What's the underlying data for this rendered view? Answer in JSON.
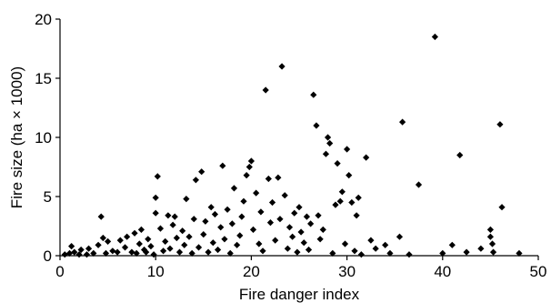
{
  "chart_data": {
    "type": "scatter",
    "title": "",
    "xlabel": "Fire danger index",
    "ylabel": "Fire size (ha × 1000)",
    "xlim": [
      0,
      50
    ],
    "ylim": [
      0,
      20
    ],
    "xticks": [
      0,
      10,
      20,
      30,
      40,
      50
    ],
    "yticks": [
      0,
      5,
      10,
      15,
      20
    ],
    "xtick_labels": [
      "0",
      "10",
      "20",
      "30",
      "40",
      "50"
    ],
    "ytick_labels": [
      "0",
      "5",
      "10",
      "15",
      "20"
    ],
    "grid": false,
    "marker": "diamond",
    "marker_color": "#000000",
    "points": [
      [
        0.5,
        0.1
      ],
      [
        1.0,
        0.2
      ],
      [
        1.2,
        0.8
      ],
      [
        1.5,
        0.3
      ],
      [
        2.0,
        0.1
      ],
      [
        2.2,
        0.5
      ],
      [
        2.8,
        0.1
      ],
      [
        3.0,
        0.6
      ],
      [
        3.5,
        0.2
      ],
      [
        4.0,
        0.9
      ],
      [
        4.3,
        3.3
      ],
      [
        4.5,
        1.5
      ],
      [
        4.8,
        0.2
      ],
      [
        5.0,
        1.2
      ],
      [
        5.5,
        0.4
      ],
      [
        6.0,
        0.3
      ],
      [
        6.3,
        1.3
      ],
      [
        6.8,
        0.7
      ],
      [
        7.0,
        1.6
      ],
      [
        7.5,
        0.3
      ],
      [
        7.8,
        1.9
      ],
      [
        8.0,
        0.2
      ],
      [
        8.3,
        1.0
      ],
      [
        8.5,
        2.2
      ],
      [
        8.8,
        0.5
      ],
      [
        9.0,
        0.3
      ],
      [
        9.2,
        1.4
      ],
      [
        9.5,
        0.8
      ],
      [
        9.8,
        0.1
      ],
      [
        10.0,
        3.6
      ],
      [
        10.0,
        4.9
      ],
      [
        10.2,
        6.7
      ],
      [
        10.5,
        2.3
      ],
      [
        10.8,
        0.4
      ],
      [
        11.0,
        1.2
      ],
      [
        11.3,
        3.4
      ],
      [
        11.5,
        0.6
      ],
      [
        11.8,
        2.6
      ],
      [
        12.0,
        3.3
      ],
      [
        12.2,
        1.5
      ],
      [
        12.5,
        0.3
      ],
      [
        12.8,
        2.1
      ],
      [
        13.0,
        0.9
      ],
      [
        13.2,
        4.8
      ],
      [
        13.5,
        1.6
      ],
      [
        13.8,
        0.2
      ],
      [
        14.0,
        3.1
      ],
      [
        14.2,
        6.4
      ],
      [
        14.5,
        0.7
      ],
      [
        14.8,
        7.1
      ],
      [
        15.0,
        1.8
      ],
      [
        15.2,
        2.9
      ],
      [
        15.5,
        0.3
      ],
      [
        15.8,
        4.1
      ],
      [
        16.0,
        1.1
      ],
      [
        16.2,
        3.5
      ],
      [
        16.5,
        0.5
      ],
      [
        16.8,
        2.4
      ],
      [
        17.0,
        7.6
      ],
      [
        17.2,
        1.4
      ],
      [
        17.5,
        3.9
      ],
      [
        17.8,
        0.2
      ],
      [
        18.0,
        2.7
      ],
      [
        18.2,
        5.7
      ],
      [
        18.5,
        0.9
      ],
      [
        18.8,
        1.7
      ],
      [
        19.0,
        3.3
      ],
      [
        19.2,
        4.6
      ],
      [
        19.5,
        6.8
      ],
      [
        19.8,
        7.5
      ],
      [
        20.0,
        8.0
      ],
      [
        20.2,
        2.2
      ],
      [
        20.5,
        5.3
      ],
      [
        20.8,
        1.0
      ],
      [
        21.0,
        3.7
      ],
      [
        21.2,
        0.4
      ],
      [
        21.5,
        14.0
      ],
      [
        21.8,
        6.5
      ],
      [
        22.0,
        2.8
      ],
      [
        22.2,
        4.5
      ],
      [
        22.5,
        1.3
      ],
      [
        22.8,
        6.6
      ],
      [
        23.0,
        3.1
      ],
      [
        23.2,
        16.0
      ],
      [
        23.5,
        5.1
      ],
      [
        23.8,
        0.6
      ],
      [
        24.0,
        2.4
      ],
      [
        24.3,
        1.6
      ],
      [
        24.5,
        3.6
      ],
      [
        24.8,
        0.3
      ],
      [
        25.0,
        4.1
      ],
      [
        25.2,
        2.0
      ],
      [
        25.5,
        1.1
      ],
      [
        25.8,
        3.3
      ],
      [
        26.0,
        0.5
      ],
      [
        26.2,
        2.7
      ],
      [
        26.5,
        13.6
      ],
      [
        26.8,
        11.0
      ],
      [
        27.0,
        3.4
      ],
      [
        27.2,
        1.4
      ],
      [
        27.5,
        2.2
      ],
      [
        27.8,
        8.6
      ],
      [
        28.0,
        10.0
      ],
      [
        28.2,
        9.5
      ],
      [
        28.5,
        0.2
      ],
      [
        28.8,
        4.3
      ],
      [
        29.0,
        7.8
      ],
      [
        29.3,
        4.6
      ],
      [
        29.5,
        5.4
      ],
      [
        29.8,
        1.0
      ],
      [
        30.0,
        9.0
      ],
      [
        30.2,
        6.8
      ],
      [
        30.5,
        4.5
      ],
      [
        30.8,
        0.4
      ],
      [
        31.0,
        3.4
      ],
      [
        31.2,
        4.9
      ],
      [
        31.5,
        0.1
      ],
      [
        32.0,
        8.3
      ],
      [
        32.5,
        1.3
      ],
      [
        33.0,
        0.6
      ],
      [
        34.0,
        0.9
      ],
      [
        34.5,
        0.2
      ],
      [
        35.5,
        1.6
      ],
      [
        35.8,
        11.3
      ],
      [
        36.5,
        0.1
      ],
      [
        37.5,
        6.0
      ],
      [
        39.2,
        18.5
      ],
      [
        40.0,
        0.2
      ],
      [
        41.0,
        0.9
      ],
      [
        41.8,
        8.5
      ],
      [
        42.5,
        0.3
      ],
      [
        44.0,
        0.6
      ],
      [
        45.0,
        2.2
      ],
      [
        45.0,
        1.6
      ],
      [
        45.2,
        1.0
      ],
      [
        45.3,
        0.3
      ],
      [
        46.0,
        11.1
      ],
      [
        46.2,
        4.1
      ],
      [
        48.0,
        0.2
      ]
    ]
  }
}
